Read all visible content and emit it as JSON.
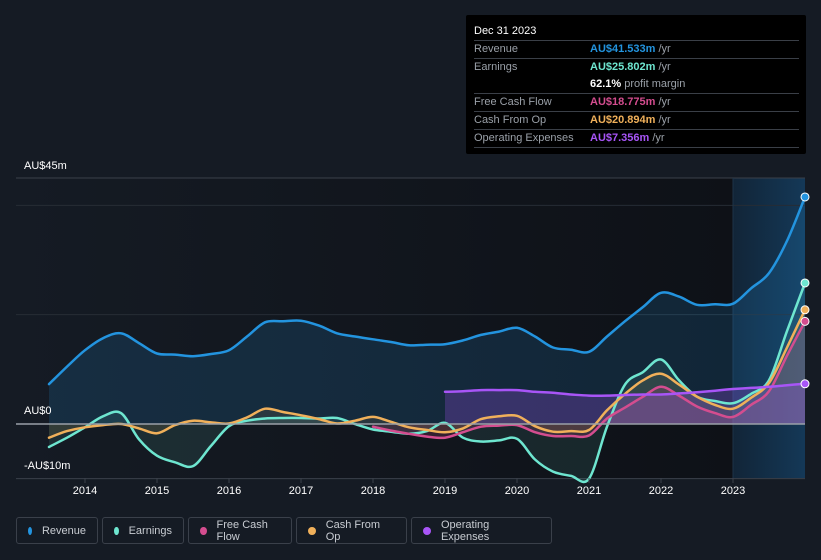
{
  "tooltip": {
    "date": "Dec 31 2023",
    "rows": [
      {
        "label": "Revenue",
        "value": "AU$41.533m",
        "unit": "/yr",
        "color": "#2394df"
      },
      {
        "label": "Earnings",
        "value": "AU$25.802m",
        "unit": "/yr",
        "color": "#6ee6d0"
      },
      {
        "label": "",
        "value": "62.1%",
        "unit": "profit margin",
        "color": "#ffffff"
      },
      {
        "label": "Free Cash Flow",
        "value": "AU$18.775m",
        "unit": "/yr",
        "color": "#d44d8f"
      },
      {
        "label": "Cash From Op",
        "value": "AU$20.894m",
        "unit": "/yr",
        "color": "#f0b05a"
      },
      {
        "label": "Operating Expenses",
        "value": "AU$7.356m",
        "unit": "/yr",
        "color": "#a855f7"
      }
    ]
  },
  "legend": [
    {
      "label": "Revenue",
      "color": "#2394df"
    },
    {
      "label": "Earnings",
      "color": "#6ee6d0"
    },
    {
      "label": "Free Cash Flow",
      "color": "#d44d8f"
    },
    {
      "label": "Cash From Op",
      "color": "#f0b05a"
    },
    {
      "label": "Operating Expenses",
      "color": "#a855f7"
    }
  ],
  "chart_data": {
    "type": "line",
    "title": "",
    "xlabel": "",
    "ylabel": "",
    "y_tick_labels": [
      "AU$45m",
      "AU$0",
      "-AU$10m"
    ],
    "y_ticks": [
      45,
      0,
      -10
    ],
    "ylim": [
      -10,
      45
    ],
    "xlim": [
      2013.5,
      2024.0
    ],
    "x_tick_labels": [
      "2014",
      "2015",
      "2016",
      "2017",
      "2018",
      "2019",
      "2020",
      "2021",
      "2022",
      "2023"
    ],
    "x_ticks": [
      2014,
      2015,
      2016,
      2017,
      2018,
      2019,
      2020,
      2021,
      2022,
      2023
    ],
    "grid": true,
    "highlight_region_start": 2023.0,
    "series": [
      {
        "name": "Revenue",
        "color": "#2394df",
        "x": [
          2013.5,
          2013.75,
          2014.0,
          2014.25,
          2014.5,
          2014.75,
          2015.0,
          2015.25,
          2015.5,
          2015.75,
          2016.0,
          2016.25,
          2016.5,
          2016.75,
          2017.0,
          2017.25,
          2017.5,
          2017.75,
          2018.0,
          2018.25,
          2018.5,
          2018.75,
          2019.0,
          2019.25,
          2019.5,
          2019.75,
          2020.0,
          2020.25,
          2020.5,
          2020.75,
          2021.0,
          2021.25,
          2021.5,
          2021.75,
          2022.0,
          2022.25,
          2022.5,
          2022.75,
          2023.0,
          2023.25,
          2023.5,
          2023.75,
          2024.0
        ],
        "values": [
          7.3,
          10.5,
          13.5,
          15.7,
          16.6,
          14.8,
          12.9,
          12.7,
          12.4,
          12.8,
          13.5,
          16.0,
          18.6,
          18.8,
          18.9,
          18.0,
          16.6,
          16.0,
          15.5,
          15.0,
          14.4,
          14.5,
          14.6,
          15.3,
          16.3,
          16.9,
          17.6,
          16.0,
          14.0,
          13.6,
          13.2,
          16.0,
          18.8,
          21.4,
          24.0,
          23.3,
          21.8,
          21.9,
          22.0,
          24.8,
          27.6,
          33.5,
          41.533
        ]
      },
      {
        "name": "Earnings",
        "color": "#6ee6d0",
        "x": [
          2013.5,
          2013.75,
          2014.0,
          2014.25,
          2014.5,
          2014.75,
          2015.0,
          2015.25,
          2015.5,
          2015.75,
          2016.0,
          2016.25,
          2016.5,
          2016.75,
          2017.0,
          2017.25,
          2017.5,
          2017.75,
          2018.0,
          2018.25,
          2018.5,
          2018.75,
          2019.0,
          2019.25,
          2019.5,
          2019.75,
          2020.0,
          2020.25,
          2020.5,
          2020.75,
          2021.0,
          2021.25,
          2021.5,
          2021.75,
          2022.0,
          2022.25,
          2022.5,
          2022.75,
          2023.0,
          2023.25,
          2023.5,
          2023.75,
          2024.0
        ],
        "values": [
          -4.2,
          -2.5,
          -0.6,
          1.4,
          2.0,
          -2.8,
          -5.8,
          -7.0,
          -7.7,
          -4.0,
          -0.4,
          0.6,
          1.0,
          1.1,
          1.1,
          1.0,
          1.1,
          0.0,
          -1.0,
          -1.4,
          -1.8,
          -1.3,
          0.2,
          -2.5,
          -3.2,
          -3.0,
          -2.7,
          -6.5,
          -8.7,
          -9.5,
          -10.0,
          -0.5,
          7.2,
          9.5,
          11.8,
          8.0,
          5.0,
          4.2,
          3.8,
          5.5,
          8.0,
          17.0,
          25.802
        ]
      },
      {
        "name": "Free Cash Flow",
        "color": "#d44d8f",
        "x": [
          2018.0,
          2018.25,
          2018.5,
          2018.75,
          2019.0,
          2019.25,
          2019.5,
          2019.75,
          2020.0,
          2020.25,
          2020.5,
          2020.75,
          2021.0,
          2021.25,
          2021.5,
          2021.75,
          2022.0,
          2022.25,
          2022.5,
          2022.75,
          2023.0,
          2023.25,
          2023.5,
          2023.75,
          2024.0
        ],
        "values": [
          -0.5,
          -1.2,
          -1.8,
          -2.3,
          -2.5,
          -1.5,
          -0.5,
          -0.3,
          -0.2,
          -1.5,
          -2.2,
          -2.2,
          -2.1,
          1.0,
          3.0,
          5.0,
          6.8,
          5.2,
          3.2,
          2.0,
          1.3,
          3.5,
          6.0,
          12.5,
          18.775
        ]
      },
      {
        "name": "Cash From Op",
        "color": "#f0b05a",
        "x": [
          2013.5,
          2013.75,
          2014.0,
          2014.25,
          2014.5,
          2014.75,
          2015.0,
          2015.25,
          2015.5,
          2015.75,
          2016.0,
          2016.25,
          2016.5,
          2016.75,
          2017.0,
          2017.25,
          2017.5,
          2017.75,
          2018.0,
          2018.25,
          2018.5,
          2018.75,
          2019.0,
          2019.25,
          2019.5,
          2019.75,
          2020.0,
          2020.25,
          2020.5,
          2020.75,
          2021.0,
          2021.25,
          2021.5,
          2021.75,
          2022.0,
          2022.25,
          2022.5,
          2022.75,
          2023.0,
          2023.25,
          2023.5,
          2023.75,
          2024.0
        ],
        "values": [
          -2.5,
          -1.3,
          -0.6,
          -0.2,
          0.0,
          -0.8,
          -1.7,
          -0.2,
          0.6,
          0.3,
          0.1,
          1.2,
          2.8,
          2.2,
          1.6,
          0.9,
          0.1,
          0.6,
          1.3,
          0.4,
          -0.6,
          -1.1,
          -1.5,
          -0.8,
          0.9,
          1.4,
          1.5,
          -0.4,
          -1.4,
          -1.3,
          -1.1,
          2.5,
          5.5,
          8.0,
          9.2,
          7.2,
          5.0,
          3.5,
          2.8,
          4.8,
          7.5,
          14.0,
          20.894
        ]
      },
      {
        "name": "Operating Expenses",
        "color": "#a855f7",
        "x": [
          2019.0,
          2019.25,
          2019.5,
          2019.75,
          2020.0,
          2020.25,
          2020.5,
          2020.75,
          2021.0,
          2021.25,
          2021.5,
          2021.75,
          2022.0,
          2022.25,
          2022.5,
          2022.75,
          2023.0,
          2023.25,
          2023.5,
          2023.75,
          2024.0
        ],
        "values": [
          5.9,
          6.0,
          6.2,
          6.2,
          6.2,
          5.9,
          5.7,
          5.4,
          5.2,
          5.2,
          5.3,
          5.4,
          5.4,
          5.6,
          5.8,
          6.1,
          6.4,
          6.6,
          6.8,
          7.1,
          7.356
        ]
      }
    ]
  }
}
